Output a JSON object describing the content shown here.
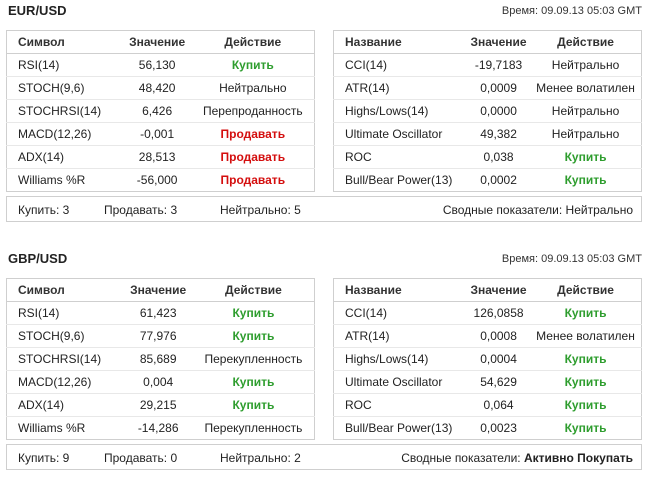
{
  "blocks": [
    {
      "pair": "EUR/USD",
      "time": "Время: 09.09.13 05:03 GMT",
      "left_headers": [
        "Символ",
        "Значение",
        "Действие"
      ],
      "right_headers": [
        "Название",
        "Значение",
        "Действие"
      ],
      "left_rows": [
        {
          "name": "RSI(14)",
          "value": "56,130",
          "action": "Купить",
          "kind": "buy"
        },
        {
          "name": "STOCH(9,6)",
          "value": "48,420",
          "action": "Нейтрально",
          "kind": "neutral"
        },
        {
          "name": "STOCHRSI(14)",
          "value": "6,426",
          "action": "Перепроданность",
          "kind": "neutral"
        },
        {
          "name": "MACD(12,26)",
          "value": "-0,001",
          "action": "Продавать",
          "kind": "sell"
        },
        {
          "name": "ADX(14)",
          "value": "28,513",
          "action": "Продавать",
          "kind": "sell"
        },
        {
          "name": "Williams %R",
          "value": "-56,000",
          "action": "Продавать",
          "kind": "sell"
        }
      ],
      "right_rows": [
        {
          "name": "CCI(14)",
          "value": "-19,7183",
          "action": "Нейтрально",
          "kind": "neutral"
        },
        {
          "name": "ATR(14)",
          "value": "0,0009",
          "action": "Менее волатилен",
          "kind": "neutral"
        },
        {
          "name": "Highs/Lows(14)",
          "value": "0,0000",
          "action": "Нейтрально",
          "kind": "neutral"
        },
        {
          "name": "Ultimate Oscillator",
          "value": "49,382",
          "action": "Нейтрально",
          "kind": "neutral"
        },
        {
          "name": "ROC",
          "value": "0,038",
          "action": "Купить",
          "kind": "buy"
        },
        {
          "name": "Bull/Bear Power(13)",
          "value": "0,0002",
          "action": "Купить",
          "kind": "buy"
        }
      ],
      "summary": {
        "buy": "Купить: 3",
        "sell": "Продавать: 3",
        "neutral": "Нейтрально: 5",
        "overall_label": "Сводные показатели: ",
        "overall_value": "Нейтрально",
        "overall_kind": "neutral"
      }
    },
    {
      "pair": "GBP/USD",
      "time": "Время: 09.09.13 05:03 GMT",
      "left_headers": [
        "Символ",
        "Значение",
        "Действие"
      ],
      "right_headers": [
        "Название",
        "Значение",
        "Действие"
      ],
      "left_rows": [
        {
          "name": "RSI(14)",
          "value": "61,423",
          "action": "Купить",
          "kind": "buy"
        },
        {
          "name": "STOCH(9,6)",
          "value": "77,976",
          "action": "Купить",
          "kind": "buy"
        },
        {
          "name": "STOCHRSI(14)",
          "value": "85,689",
          "action": "Перекупленность",
          "kind": "neutral"
        },
        {
          "name": "MACD(12,26)",
          "value": "0,004",
          "action": "Купить",
          "kind": "buy"
        },
        {
          "name": "ADX(14)",
          "value": "29,215",
          "action": "Купить",
          "kind": "buy"
        },
        {
          "name": "Williams %R",
          "value": "-14,286",
          "action": "Перекупленность",
          "kind": "neutral"
        }
      ],
      "right_rows": [
        {
          "name": "CCI(14)",
          "value": "126,0858",
          "action": "Купить",
          "kind": "buy"
        },
        {
          "name": "ATR(14)",
          "value": "0,0008",
          "action": "Менее волатилен",
          "kind": "neutral"
        },
        {
          "name": "Highs/Lows(14)",
          "value": "0,0004",
          "action": "Купить",
          "kind": "buy"
        },
        {
          "name": "Ultimate Oscillator",
          "value": "54,629",
          "action": "Купить",
          "kind": "buy"
        },
        {
          "name": "ROC",
          "value": "0,064",
          "action": "Купить",
          "kind": "buy"
        },
        {
          "name": "Bull/Bear Power(13)",
          "value": "0,0023",
          "action": "Купить",
          "kind": "buy"
        }
      ],
      "summary": {
        "buy": "Купить: 9",
        "sell": "Продавать: 0",
        "neutral": "Нейтрально: 2",
        "overall_label": "Сводные показатели: ",
        "overall_value": "Активно Покупать",
        "overall_kind": "buy"
      }
    }
  ],
  "colors": {
    "buy": "#2e9d2e",
    "sell": "#d40e0e",
    "neutral": "#222222",
    "border": "#cfcfcf"
  }
}
